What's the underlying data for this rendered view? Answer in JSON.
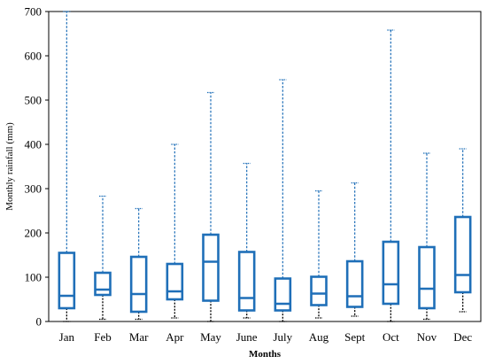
{
  "chart_data": {
    "type": "box",
    "xlabel": "Months",
    "ylabel": "Monthly rainfall (mm)",
    "ylim": [
      0,
      700
    ],
    "yticks": [
      0,
      100,
      200,
      300,
      400,
      500,
      600,
      700
    ],
    "grid": false,
    "box_color": "#1f6fb8",
    "whisker_color": "#1f6fb8",
    "lower_whisker_color": "#000000",
    "categories": [
      "Jan",
      "Feb",
      "Mar",
      "Apr",
      "May",
      "June",
      "July",
      "Aug",
      "Sept",
      "Oct",
      "Nov",
      "Dec"
    ],
    "boxes": [
      {
        "min": 0,
        "q1": 30,
        "median": 58,
        "q3": 155,
        "max": 700
      },
      {
        "min": 5,
        "q1": 60,
        "median": 72,
        "q3": 110,
        "max": 283
      },
      {
        "min": 5,
        "q1": 22,
        "median": 62,
        "q3": 146,
        "max": 255
      },
      {
        "min": 8,
        "q1": 50,
        "median": 68,
        "q3": 130,
        "max": 400
      },
      {
        "min": 0,
        "q1": 47,
        "median": 135,
        "q3": 196,
        "max": 517
      },
      {
        "min": 8,
        "q1": 25,
        "median": 53,
        "q3": 157,
        "max": 357
      },
      {
        "min": 0,
        "q1": 25,
        "median": 40,
        "q3": 97,
        "max": 546
      },
      {
        "min": 8,
        "q1": 37,
        "median": 63,
        "q3": 101,
        "max": 295
      },
      {
        "min": 12,
        "q1": 33,
        "median": 57,
        "q3": 136,
        "max": 313
      },
      {
        "min": 0,
        "q1": 40,
        "median": 84,
        "q3": 180,
        "max": 658
      },
      {
        "min": 5,
        "q1": 30,
        "median": 74,
        "q3": 168,
        "max": 380
      },
      {
        "min": 22,
        "q1": 66,
        "median": 105,
        "q3": 236,
        "max": 390
      }
    ]
  }
}
